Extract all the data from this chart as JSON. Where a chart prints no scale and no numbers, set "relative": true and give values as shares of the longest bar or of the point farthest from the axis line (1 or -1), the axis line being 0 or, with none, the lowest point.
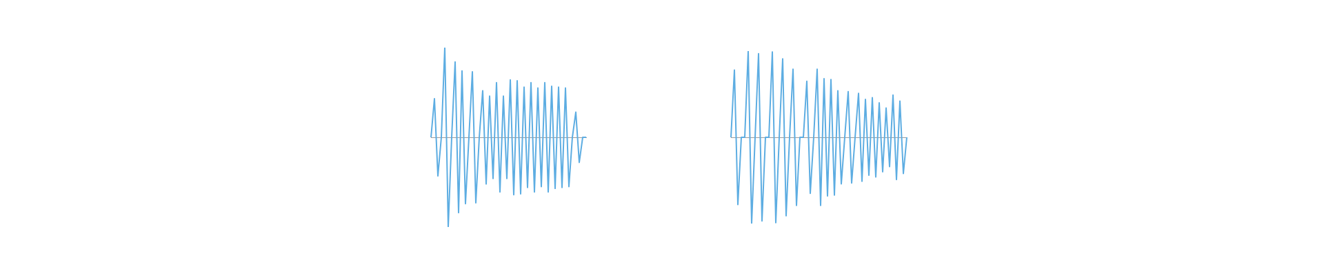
{
  "chart_data": [
    {
      "type": "line",
      "relative": true,
      "marker": "none",
      "categories": [
        null,
        null,
        null,
        null,
        null,
        null,
        null,
        null,
        null,
        null,
        null,
        null,
        null,
        null,
        null,
        null,
        null,
        null,
        null,
        null,
        null,
        null,
        null,
        null,
        null,
        null,
        null,
        null,
        null,
        null,
        null,
        null,
        null,
        null,
        null,
        null,
        null,
        null,
        null,
        null,
        null,
        null,
        null,
        null,
        null,
        null
      ],
      "series": [
        {
          "color": "#5dade2",
          "values": [
            0,
            0.43,
            -0.43,
            0,
            1,
            -1,
            0,
            0.84,
            -0.84,
            0.74,
            -0.74,
            0,
            0.73,
            -0.73,
            0,
            0.52,
            -0.52,
            0.46,
            -0.46,
            0.61,
            -0.61,
            0.46,
            -0.46,
            0.64,
            -0.64,
            0.63,
            -0.63,
            0.56,
            -0.56,
            0.61,
            -0.61,
            0.55,
            -0.55,
            0.61,
            -0.61,
            0.57,
            -0.57,
            0.56,
            -0.56,
            0.55,
            -0.55,
            0,
            0.28,
            -0.28,
            0,
            0
          ]
        }
      ]
    },
    {
      "type": "line",
      "relative": true,
      "marker": "none",
      "categories": [
        null,
        null,
        null,
        null,
        null,
        null,
        null,
        null,
        null,
        null,
        null,
        null,
        null,
        null,
        null,
        null,
        null,
        null,
        null,
        null,
        null,
        null,
        null,
        null,
        null,
        null,
        null,
        null,
        null,
        null,
        null,
        null,
        null,
        null,
        null,
        null,
        null,
        null,
        null,
        null,
        null,
        null,
        null,
        null,
        null,
        null,
        null,
        null,
        null,
        null,
        null,
        null
      ],
      "series": [
        {
          "color": "#5dade2",
          "values": [
            0,
            0.78,
            -0.78,
            0,
            0,
            1,
            -1,
            0,
            0.97,
            -0.97,
            0,
            0,
            0.99,
            -0.99,
            0,
            0.91,
            -0.91,
            0,
            0.79,
            -0.79,
            0,
            0,
            0.65,
            -0.65,
            0,
            0.79,
            -0.79,
            0.68,
            -0.68,
            0.67,
            -0.67,
            0.54,
            -0.54,
            0,
            0.53,
            -0.53,
            0,
            0.51,
            -0.51,
            0.44,
            -0.44,
            0.46,
            -0.46,
            0.4,
            -0.4,
            0.34,
            -0.34,
            0.49,
            -0.49,
            0.42,
            -0.42,
            0
          ]
        }
      ]
    }
  ]
}
